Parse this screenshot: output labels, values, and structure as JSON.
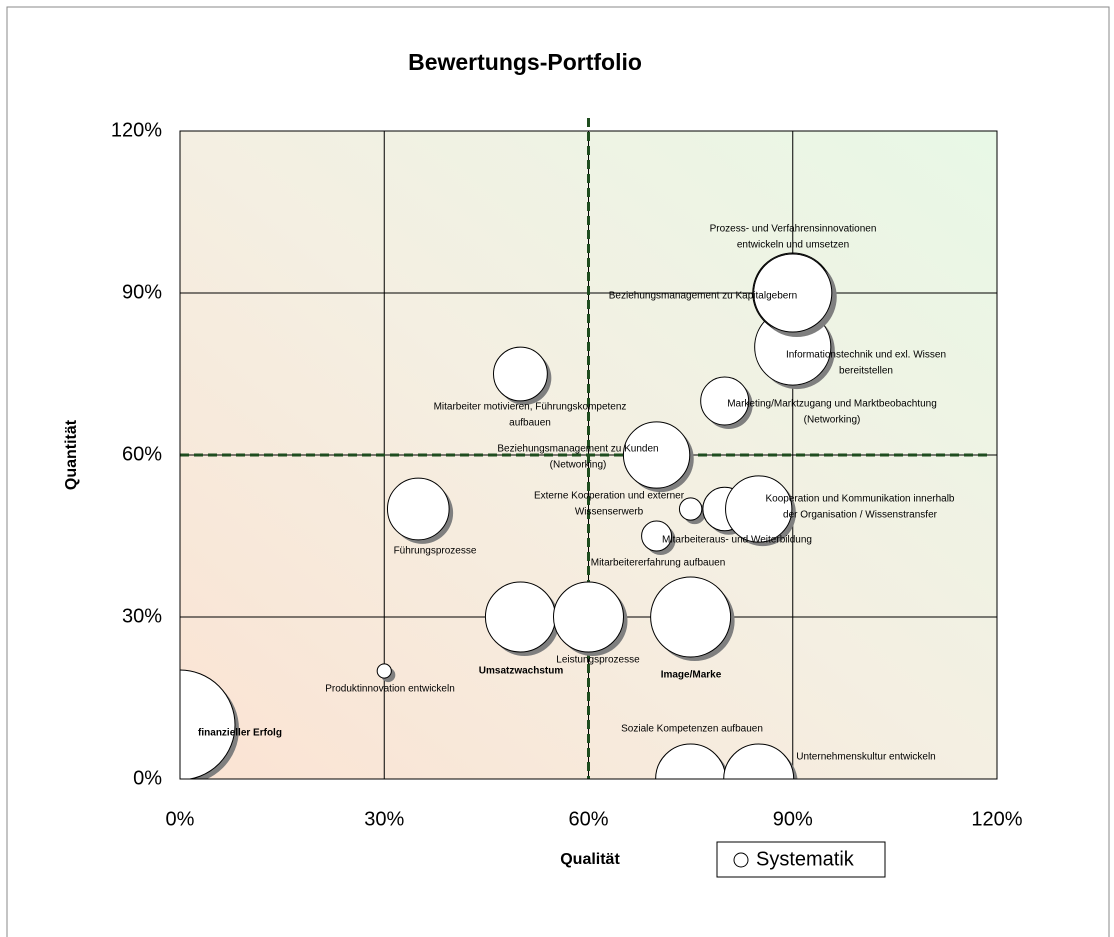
{
  "chart_data": {
    "type": "bubble",
    "title": "Bewertungs-Portfolio",
    "x_label": "Qualität",
    "y_label": "Quantität",
    "xlim": [
      0,
      120
    ],
    "ylim": [
      0,
      120
    ],
    "xticks": [
      {
        "value": 0,
        "label": "0%"
      },
      {
        "value": 30,
        "label": "30%"
      },
      {
        "value": 60,
        "label": "60%"
      },
      {
        "value": 90,
        "label": "90%"
      },
      {
        "value": 120,
        "label": "120%"
      }
    ],
    "yticks": [
      {
        "value": 0,
        "label": "0%"
      },
      {
        "value": 30,
        "label": "30%"
      },
      {
        "value": 60,
        "label": "60%"
      },
      {
        "value": 90,
        "label": "90%"
      },
      {
        "value": 120,
        "label": "120%"
      }
    ],
    "grid": true,
    "xref": 60,
    "yref": 60,
    "legend": "bottom-right",
    "series": [
      {
        "name": "Systematik",
        "color": "#ffffff",
        "x": [
          0,
          30,
          35,
          50,
          50,
          60,
          75,
          70,
          70,
          75,
          80,
          85,
          80,
          90,
          90,
          90,
          75,
          85
        ],
        "values": [
          10,
          20,
          50,
          75,
          30,
          30,
          30,
          60,
          45,
          50,
          50,
          50,
          70,
          80,
          90,
          90,
          0,
          0
        ],
        "sizes": [
          121,
          2,
          38,
          29,
          49,
          49,
          64,
          44,
          9,
          5,
          19,
          44,
          23,
          58,
          64,
          61,
          49,
          49
        ],
        "labels": [
          [
            "finanzieller Erfolg"
          ],
          [
            "Produktinnovation entwickeln"
          ],
          [
            "Führungsprozesse"
          ],
          [
            "Mitarbeiter motivieren, Führungskompetenz",
            "aufbauen"
          ],
          [
            "Umsatzwachstum"
          ],
          [
            "Leistungsprozesse"
          ],
          [
            "Image/Marke"
          ],
          [
            "Beziehungsmanagement zu Kunden",
            "(Networking)"
          ],
          [
            "Mitarbeiteraus- und Weiterbildung"
          ],
          [
            "Externe Kooperation und externer",
            "Wissenserwerb"
          ],
          [
            "Mitarbeitererfahrung aufbauen"
          ],
          [
            "Kooperation und Kommunikation innerhalb",
            "der Organisation / Wissenstransfer"
          ],
          [
            "Marketing/Marktzugang und Marktbeobachtung",
            "(Networking)"
          ],
          [
            "Informationstechnik und exl. Wissen",
            "bereitstellen"
          ],
          [
            "Prozess- und Verfahrensinnovationen",
            "entwickeln und umsetzen"
          ],
          [
            "Beziehungsmanagement zu Kapitalgebern"
          ],
          [
            "Soziale Kompetenzen aufbauen"
          ],
          [
            "Unternehmenskultur entwickeln"
          ]
        ]
      }
    ]
  }
}
